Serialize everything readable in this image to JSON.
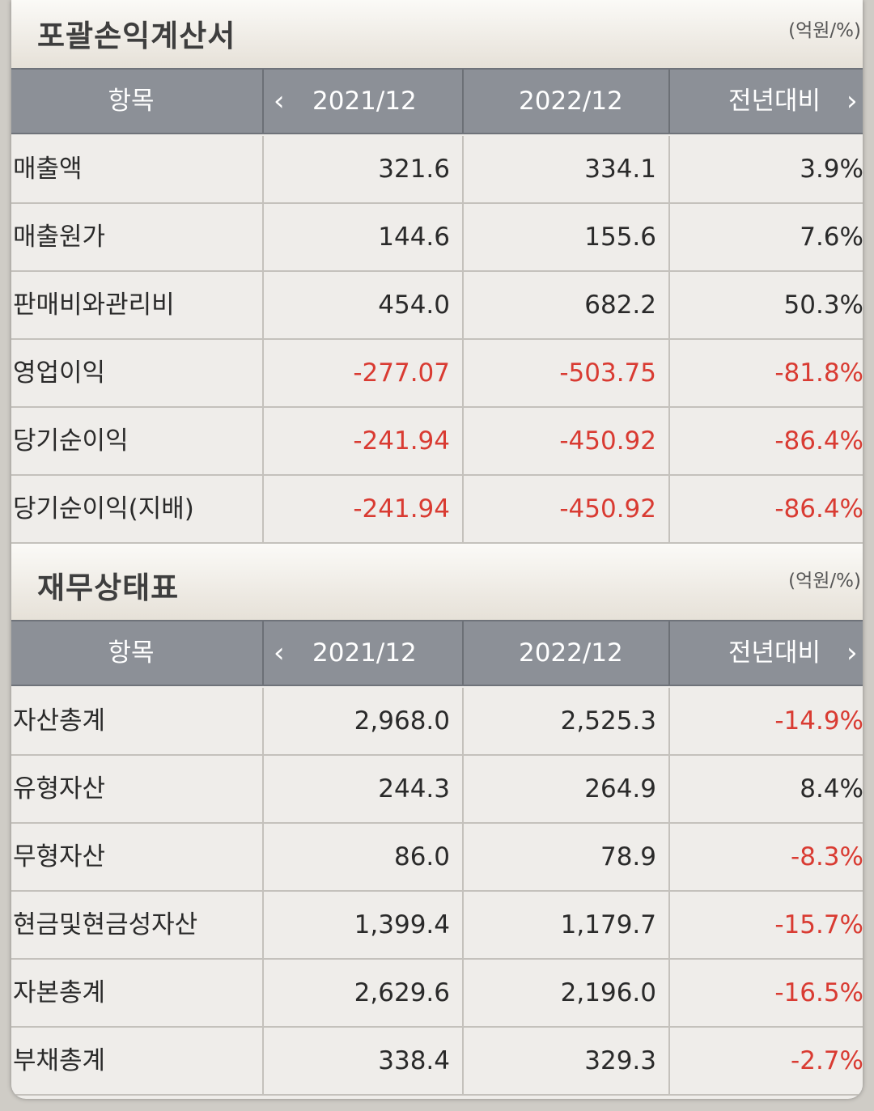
{
  "income_statement": {
    "title": "포괄손익계산서",
    "unit": "(억원/%)",
    "headers": {
      "item": "항목",
      "col1": "2021/12",
      "col2": "2022/12",
      "col3": "전년대비"
    },
    "rows": [
      {
        "name": "매출액",
        "v1": "321.6",
        "v2": "334.1",
        "v3": "3.9%"
      },
      {
        "name": "매출원가",
        "v1": "144.6",
        "v2": "155.6",
        "v3": "7.6%"
      },
      {
        "name": "판매비와관리비",
        "v1": "454.0",
        "v2": "682.2",
        "v3": "50.3%"
      },
      {
        "name": "영업이익",
        "v1": "-277.07",
        "v2": "-503.75",
        "v3": "-81.8%"
      },
      {
        "name": "당기순이익",
        "v1": "-241.94",
        "v2": "-450.92",
        "v3": "-86.4%"
      },
      {
        "name": "당기순이익(지배)",
        "v1": "-241.94",
        "v2": "-450.92",
        "v3": "-86.4%"
      }
    ]
  },
  "balance_sheet": {
    "title": "재무상태표",
    "unit": "(억원/%)",
    "headers": {
      "item": "항목",
      "col1": "2021/12",
      "col2": "2022/12",
      "col3": "전년대비"
    },
    "rows": [
      {
        "name": "자산총계",
        "v1": "2,968.0",
        "v2": "2,525.3",
        "v3": "-14.9%"
      },
      {
        "name": "유형자산",
        "v1": "244.3",
        "v2": "264.9",
        "v3": "8.4%"
      },
      {
        "name": "무형자산",
        "v1": "86.0",
        "v2": "78.9",
        "v3": "-8.3%"
      },
      {
        "name": "현금및현금성자산",
        "v1": "1,399.4",
        "v2": "1,179.7",
        "v3": "-15.7%"
      },
      {
        "name": "자본총계",
        "v1": "2,629.6",
        "v2": "2,196.0",
        "v3": "-16.5%"
      },
      {
        "name": "부채총계",
        "v1": "338.4",
        "v2": "329.3",
        "v3": "-2.7%"
      }
    ]
  },
  "icons": {
    "prev": "chevron-left-icon",
    "next": "chevron-right-icon"
  },
  "colors": {
    "negative": "#d93b32",
    "header_bg": "#8c9097"
  }
}
